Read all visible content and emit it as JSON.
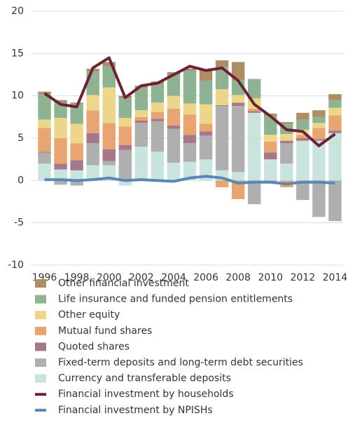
{
  "chart_data": {
    "type": "bar",
    "categories": [
      "1996",
      null,
      "1998",
      null,
      "2000",
      null,
      "2002",
      null,
      "2004",
      null,
      "2006",
      null,
      "2008",
      null,
      "2010",
      null,
      "2012",
      null,
      "2014"
    ],
    "ylim": [
      -10,
      20
    ],
    "yticks": [
      -10,
      -5,
      0,
      5,
      10,
      15,
      20
    ],
    "grid": true,
    "series": [
      {
        "name": "Currency and transferable deposits",
        "color": "#c9e3df",
        "values": [
          2.0,
          1.3,
          1.2,
          1.8,
          1.8,
          -0.6,
          4.0,
          3.4,
          2.1,
          2.2,
          2.5,
          1.2,
          1.0,
          8.0,
          2.5,
          2.0,
          4.7,
          4.7,
          5.6
        ]
      },
      {
        "name": "Fixed-term deposits and long-term debt securities",
        "color": "#afafaf",
        "values": [
          1.3,
          -0.5,
          -0.6,
          2.6,
          0.5,
          3.6,
          2.8,
          3.6,
          4.0,
          2.2,
          2.8,
          7.6,
          7.8,
          -2.8,
          -0.1,
          2.4,
          -2.3,
          -4.3,
          -4.8
        ]
      },
      {
        "name": "Quoted shares",
        "color": "#a6798a",
        "values": [
          0.1,
          0.7,
          1.2,
          1.2,
          1.4,
          0.6,
          0.3,
          0.3,
          0.4,
          1.0,
          0.5,
          0.1,
          0.4,
          0.2,
          0.8,
          0.3,
          0.3,
          0.2,
          0.3
        ]
      },
      {
        "name": "Mutual fund shares",
        "color": "#e8a572",
        "values": [
          2.8,
          3.0,
          2.0,
          2.7,
          3.1,
          2.2,
          0.4,
          0.8,
          2.0,
          2.4,
          0.9,
          -0.8,
          -2.2,
          0.3,
          1.3,
          -0.8,
          0.4,
          1.3,
          1.8
        ]
      },
      {
        "name": "Other equity",
        "color": "#ebd68a",
        "values": [
          1.0,
          2.4,
          2.3,
          1.8,
          4.2,
          1.0,
          0.8,
          1.1,
          1.5,
          1.3,
          2.3,
          1.9,
          0.9,
          1.2,
          0.8,
          0.8,
          0.6,
          0.6,
          0.9
        ]
      },
      {
        "name": "Life insurance and funded pension entitlements",
        "color": "#8fb293",
        "values": [
          3.0,
          1.8,
          2.3,
          2.8,
          2.5,
          2.3,
          2.6,
          2.2,
          2.5,
          3.9,
          2.8,
          2.6,
          1.8,
          2.3,
          2.2,
          1.2,
          1.2,
          0.7,
          0.9
        ]
      },
      {
        "name": "Other financial investment",
        "color": "#b08c64",
        "values": [
          0.3,
          0.3,
          0.2,
          0.3,
          0.5,
          0.3,
          0.3,
          0.3,
          0.3,
          0.2,
          1.3,
          0.8,
          2.1,
          0.0,
          0.3,
          0.2,
          0.8,
          0.8,
          0.7
        ]
      }
    ],
    "lines": [
      {
        "name": "Financial investment by households",
        "color": "#6b2136",
        "values": [
          10.3,
          9.0,
          8.7,
          13.3,
          14.5,
          9.8,
          11.2,
          11.5,
          12.5,
          13.5,
          13.0,
          13.3,
          11.8,
          9.0,
          7.6,
          6.0,
          5.8,
          4.1,
          5.5
        ]
      },
      {
        "name": "Financial investment by NPISHs",
        "color": "#5b87b8",
        "values": [
          0.1,
          0.1,
          0.0,
          0.1,
          0.3,
          0.0,
          0.1,
          0.0,
          -0.1,
          0.3,
          0.5,
          0.3,
          -0.3,
          -0.2,
          -0.2,
          -0.4,
          -0.2,
          -0.2,
          -0.3
        ]
      }
    ]
  }
}
